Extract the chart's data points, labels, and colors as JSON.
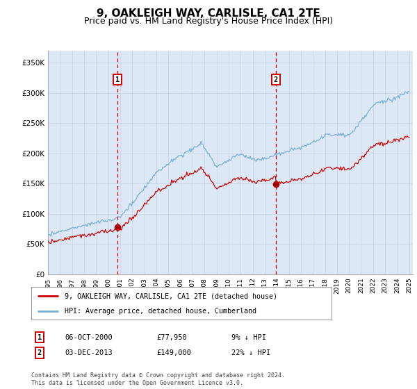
{
  "title": "9, OAKLEIGH WAY, CARLISLE, CA1 2TE",
  "subtitle": "Price paid vs. HM Land Registry's House Price Index (HPI)",
  "title_fontsize": 11,
  "subtitle_fontsize": 9,
  "background_color": "#ffffff",
  "plot_bg_color": "#dce8f5",
  "ylim": [
    0,
    370000
  ],
  "yticks": [
    0,
    50000,
    100000,
    150000,
    200000,
    250000,
    300000,
    350000
  ],
  "ytick_labels": [
    "£0",
    "£50K",
    "£100K",
    "£150K",
    "£200K",
    "£250K",
    "£300K",
    "£350K"
  ],
  "xstart_year": 1995,
  "xend_year": 2025,
  "sale1_year": 2000.78,
  "sale1_price": 77950,
  "sale1_label": "1",
  "sale1_date": "06-OCT-2000",
  "sale1_pct": "9% ↓ HPI",
  "sale2_year": 2013.92,
  "sale2_price": 149000,
  "sale2_label": "2",
  "sale2_date": "03-DEC-2013",
  "sale2_pct": "22% ↓ HPI",
  "legend_label1": "9, OAKLEIGH WAY, CARLISLE, CA1 2TE (detached house)",
  "legend_label2": "HPI: Average price, detached house, Cumberland",
  "footer": "Contains HM Land Registry data © Crown copyright and database right 2024.\nThis data is licensed under the Open Government Licence v3.0.",
  "line_color_sale": "#cc0000",
  "line_color_hpi": "#7aadd4",
  "grid_color": "#c8d8e8",
  "dashed_line_color": "#cc0000",
  "marker_color": "#aa0000"
}
